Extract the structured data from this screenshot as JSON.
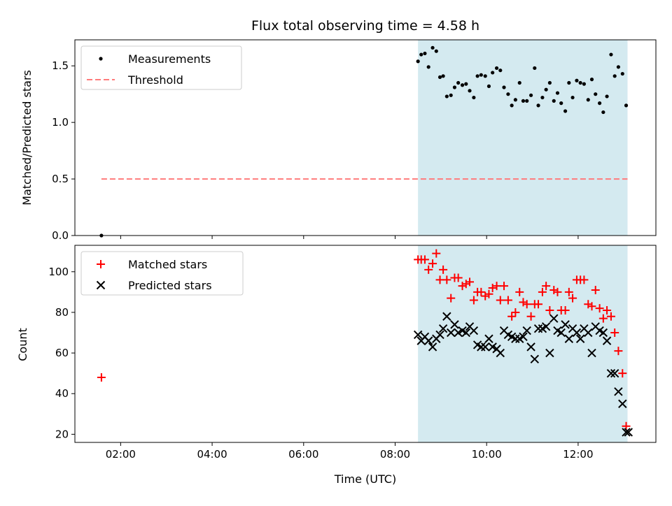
{
  "chart_data": [
    {
      "type": "scatter",
      "title": "Flux total observing time = 4.58 h",
      "xlabel": "",
      "ylabel": "Matched/Predicted stars",
      "xlim": [
        1.0,
        13.7
      ],
      "ylim": [
        0.0,
        1.73
      ],
      "yticks": [
        "0.0",
        "0.5",
        "1.0",
        "1.5"
      ],
      "observing_window": [
        8.5,
        13.08
      ],
      "observing_window_color": "#d4eaf0",
      "legend": {
        "placement": "upper left",
        "entries": [
          "Measurements",
          "Threshold"
        ]
      },
      "threshold": {
        "name": "Threshold",
        "value": 0.5,
        "x_range": [
          1.58,
          13.08
        ],
        "color": "#ff7b7b"
      },
      "series": [
        {
          "name": "Measurements",
          "color": "#000000",
          "x": [
            1.58,
            8.5,
            8.57,
            8.65,
            8.73,
            8.82,
            8.9,
            8.98,
            9.05,
            9.13,
            9.22,
            9.3,
            9.38,
            9.47,
            9.55,
            9.63,
            9.72,
            9.8,
            9.88,
            9.97,
            10.05,
            10.13,
            10.22,
            10.3,
            10.38,
            10.47,
            10.55,
            10.63,
            10.72,
            10.8,
            10.88,
            10.97,
            11.05,
            11.13,
            11.22,
            11.3,
            11.38,
            11.47,
            11.55,
            11.63,
            11.72,
            11.8,
            11.88,
            11.97,
            12.05,
            12.13,
            12.22,
            12.3,
            12.38,
            12.47,
            12.55,
            12.63,
            12.72,
            12.8,
            12.88,
            12.97,
            13.05
          ],
          "y": [
            0.0,
            1.54,
            1.6,
            1.61,
            1.49,
            1.66,
            1.63,
            1.4,
            1.41,
            1.23,
            1.24,
            1.31,
            1.35,
            1.33,
            1.34,
            1.28,
            1.22,
            1.41,
            1.42,
            1.41,
            1.32,
            1.44,
            1.48,
            1.46,
            1.31,
            1.25,
            1.15,
            1.2,
            1.35,
            1.19,
            1.19,
            1.24,
            1.48,
            1.15,
            1.22,
            1.29,
            1.35,
            1.19,
            1.26,
            1.17,
            1.1,
            1.35,
            1.22,
            1.37,
            1.35,
            1.34,
            1.2,
            1.38,
            1.25,
            1.17,
            1.09,
            1.23,
            1.6,
            1.41,
            1.49,
            1.43,
            1.15
          ]
        }
      ]
    },
    {
      "type": "scatter",
      "title": "",
      "xlabel": "Time (UTC)",
      "ylabel": "Count",
      "xlim": [
        1.0,
        13.7
      ],
      "ylim": [
        16,
        113
      ],
      "xticks": [
        {
          "v": 2,
          "label": "02:00"
        },
        {
          "v": 4,
          "label": "04:00"
        },
        {
          "v": 6,
          "label": "06:00"
        },
        {
          "v": 8,
          "label": "08:00"
        },
        {
          "v": 10,
          "label": "10:00"
        },
        {
          "v": 12,
          "label": "12:00"
        }
      ],
      "yticks": [
        "20",
        "40",
        "60",
        "80",
        "100"
      ],
      "observing_window": [
        8.5,
        13.08
      ],
      "observing_window_color": "#d4eaf0",
      "legend": {
        "placement": "upper left",
        "entries": [
          "Matched stars",
          "Predicted stars"
        ]
      },
      "series": [
        {
          "name": "Matched stars",
          "marker": "plus",
          "color": "#ff0000",
          "x": [
            1.58,
            8.5,
            8.57,
            8.65,
            8.73,
            8.82,
            8.9,
            8.98,
            9.05,
            9.13,
            9.22,
            9.3,
            9.38,
            9.47,
            9.55,
            9.63,
            9.72,
            9.8,
            9.88,
            9.97,
            10.05,
            10.13,
            10.22,
            10.3,
            10.38,
            10.47,
            10.55,
            10.63,
            10.72,
            10.8,
            10.88,
            10.97,
            11.05,
            11.13,
            11.22,
            11.3,
            11.38,
            11.47,
            11.55,
            11.63,
            11.72,
            11.8,
            11.88,
            11.97,
            12.05,
            12.13,
            12.22,
            12.3,
            12.38,
            12.47,
            12.55,
            12.63,
            12.72,
            12.8,
            12.88,
            12.97,
            13.05
          ],
          "y": [
            48,
            106,
            106,
            106,
            101,
            104,
            109,
            96,
            101,
            96,
            87,
            97,
            97,
            93,
            94,
            95,
            86,
            90,
            90,
            88,
            89,
            92,
            93,
            86,
            93,
            86,
            78,
            80,
            90,
            85,
            84,
            78,
            84,
            84,
            90,
            93,
            81,
            91,
            90,
            81,
            81,
            90,
            87,
            96,
            96,
            96,
            84,
            83,
            91,
            82,
            77,
            81,
            78,
            70,
            61,
            50,
            24
          ]
        },
        {
          "name": "Predicted stars",
          "marker": "x",
          "color": "#000000",
          "x": [
            8.5,
            8.57,
            8.65,
            8.73,
            8.82,
            8.9,
            8.98,
            9.05,
            9.13,
            9.22,
            9.3,
            9.38,
            9.47,
            9.55,
            9.63,
            9.72,
            9.8,
            9.88,
            9.97,
            10.05,
            10.13,
            10.22,
            10.3,
            10.38,
            10.47,
            10.55,
            10.63,
            10.72,
            10.8,
            10.88,
            10.97,
            11.05,
            11.13,
            11.22,
            11.3,
            11.38,
            11.47,
            11.55,
            11.63,
            11.72,
            11.8,
            11.88,
            11.97,
            12.05,
            12.13,
            12.22,
            12.3,
            12.38,
            12.47,
            12.55,
            12.63,
            12.72,
            12.8,
            12.88,
            12.97,
            13.05,
            13.1
          ],
          "y": [
            69,
            66,
            68,
            66,
            63,
            67,
            69,
            72,
            78,
            70,
            74,
            70,
            71,
            70,
            73,
            71,
            64,
            63,
            63,
            67,
            63,
            62,
            60,
            71,
            69,
            68,
            67,
            67,
            68,
            71,
            63,
            57,
            72,
            72,
            73,
            60,
            77,
            71,
            70,
            74,
            67,
            72,
            70,
            67,
            72,
            70,
            60,
            73,
            71,
            70,
            66,
            50,
            50,
            41,
            35,
            21,
            21
          ]
        }
      ]
    }
  ]
}
